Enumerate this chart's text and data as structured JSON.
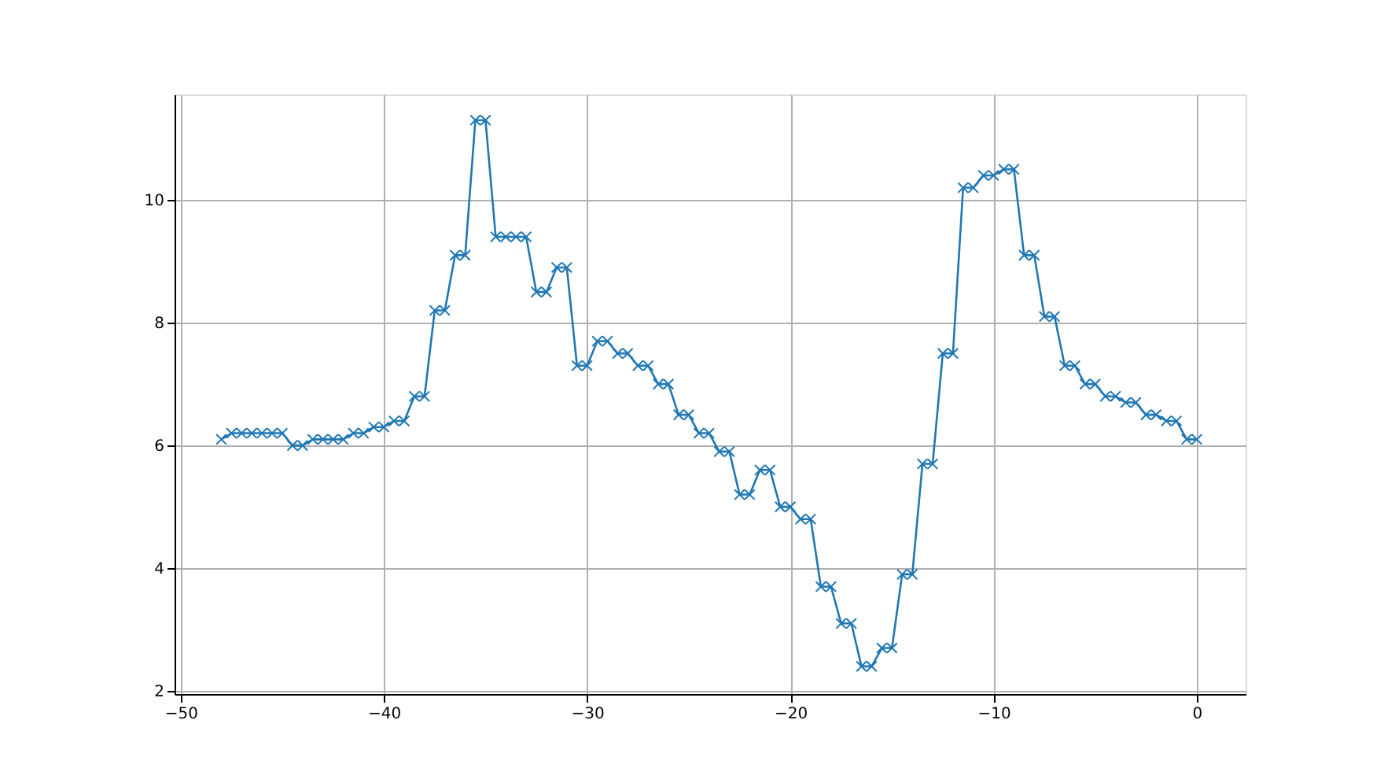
{
  "chart_data": {
    "type": "line",
    "x": [
      -48,
      -47.5,
      -47,
      -46.5,
      -46,
      -45.5,
      -45,
      -44.5,
      -44,
      -43.5,
      -43,
      -42.5,
      -42,
      -41.5,
      -41,
      -40.5,
      -40,
      -39.5,
      -39,
      -38.5,
      -38,
      -37.5,
      -37,
      -36.5,
      -36,
      -35.5,
      -35,
      -34.5,
      -34,
      -33.5,
      -33,
      -32.5,
      -32,
      -31.5,
      -31,
      -30.5,
      -30,
      -29.5,
      -29,
      -28.5,
      -28,
      -27.5,
      -27,
      -26.5,
      -26,
      -25.5,
      -25,
      -24.5,
      -24,
      -23.5,
      -23,
      -22.5,
      -22,
      -21.5,
      -21,
      -20.5,
      -20,
      -19.5,
      -19,
      -18.5,
      -18,
      -17.5,
      -17,
      -16.5,
      -16,
      -15.5,
      -15,
      -14.5,
      -14,
      -13.5,
      -13,
      -12.5,
      -12,
      -11.5,
      -11,
      -10.5,
      -10,
      -9.5,
      -9,
      -8.5,
      -8,
      -7.5,
      -7,
      -6.5,
      -6,
      -5.5,
      -5,
      -4.5,
      -4,
      -3.5,
      -3,
      -2.5,
      -2,
      -1.5,
      -1,
      -0.5,
      0
    ],
    "series": [
      {
        "color": "#1f77b4",
        "values": [
          6.1,
          6.2,
          6.2,
          6.2,
          6.2,
          6.2,
          6.2,
          6.0,
          6.0,
          6.1,
          6.1,
          6.1,
          6.1,
          6.2,
          6.2,
          6.3,
          6.3,
          6.4,
          6.4,
          6.8,
          6.8,
          8.2,
          8.2,
          9.1,
          9.1,
          11.3,
          11.3,
          9.4,
          9.4,
          9.4,
          9.4,
          8.5,
          8.5,
          8.9,
          8.9,
          7.3,
          7.3,
          7.7,
          7.7,
          7.5,
          7.5,
          7.3,
          7.3,
          7.0,
          7.0,
          6.5,
          6.5,
          6.2,
          6.2,
          5.9,
          5.9,
          5.2,
          5.2,
          5.6,
          5.6,
          5.0,
          5.0,
          4.8,
          4.8,
          3.7,
          3.7,
          3.1,
          3.1,
          2.4,
          2.4,
          2.7,
          2.7,
          3.9,
          3.9,
          5.7,
          5.7,
          7.5,
          7.5,
          10.2,
          10.2,
          10.4,
          10.4,
          10.5,
          10.5,
          9.1,
          9.1,
          8.1,
          8.1,
          7.3,
          7.3,
          7.0,
          7.0,
          6.8,
          6.8,
          6.7,
          6.7,
          6.5,
          6.5,
          6.4,
          6.4,
          6.1,
          6.1
        ]
      }
    ],
    "xlim": [
      -50.3,
      2.4
    ],
    "ylim": [
      1.95,
      11.72
    ],
    "xticks": [
      -50,
      -40,
      -30,
      -20,
      -10,
      0
    ],
    "yticks": [
      2,
      4,
      6,
      8,
      10
    ],
    "grid": true,
    "marker": "cross",
    "line_style": "solid"
  }
}
